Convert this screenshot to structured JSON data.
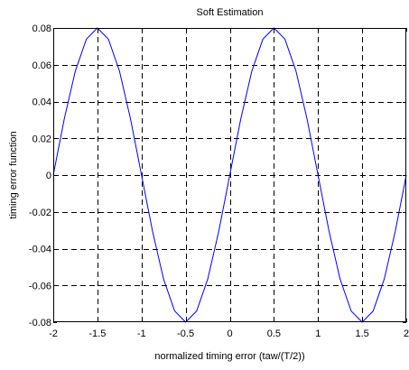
{
  "chart_data": {
    "type": "line",
    "title": "Soft Estimation",
    "xlabel": "normalized timing error (taw/(T/2))",
    "ylabel": "timing error function",
    "xlim": [
      -2,
      2
    ],
    "ylim": [
      -0.08,
      0.08
    ],
    "xticks": [
      -2,
      -1.5,
      -1,
      -0.5,
      0,
      0.5,
      1,
      1.5,
      2
    ],
    "xtick_labels": [
      "-2",
      "-1.5",
      "-1",
      "-0.5",
      "0",
      "0.5",
      "1",
      "1.5",
      "2"
    ],
    "yticks": [
      0.08,
      0.06,
      0.04,
      0.02,
      0,
      -0.02,
      -0.04,
      -0.06,
      -0.08
    ],
    "ytick_labels": [
      "0.08",
      "0.06",
      "0.04",
      "0.02",
      "0",
      "-0.02",
      "-0.04",
      "-0.06",
      "-0.08"
    ],
    "grid": true,
    "grid_style": "dashed",
    "series": [
      {
        "color": "#0000ff",
        "x": [
          -2,
          -1.875,
          -1.75,
          -1.625,
          -1.5,
          -1.375,
          -1.25,
          -1.125,
          -1,
          -0.875,
          -0.75,
          -0.625,
          -0.5,
          -0.375,
          -0.25,
          -0.125,
          0,
          0.125,
          0.25,
          0.375,
          0.5,
          0.625,
          0.75,
          0.875,
          1,
          1.125,
          1.25,
          1.375,
          1.5,
          1.625,
          1.75,
          1.875,
          2
        ],
        "y": [
          0,
          0.0306,
          0.0566,
          0.0739,
          0.08,
          0.0739,
          0.0566,
          0.0306,
          0,
          -0.0306,
          -0.0566,
          -0.0739,
          -0.08,
          -0.0739,
          -0.0566,
          -0.0306,
          0,
          0.0306,
          0.0566,
          0.0739,
          0.08,
          0.0739,
          0.0566,
          0.0306,
          0,
          -0.0306,
          -0.0566,
          -0.0739,
          -0.08,
          -0.0739,
          -0.0566,
          -0.0306,
          0
        ]
      }
    ]
  }
}
